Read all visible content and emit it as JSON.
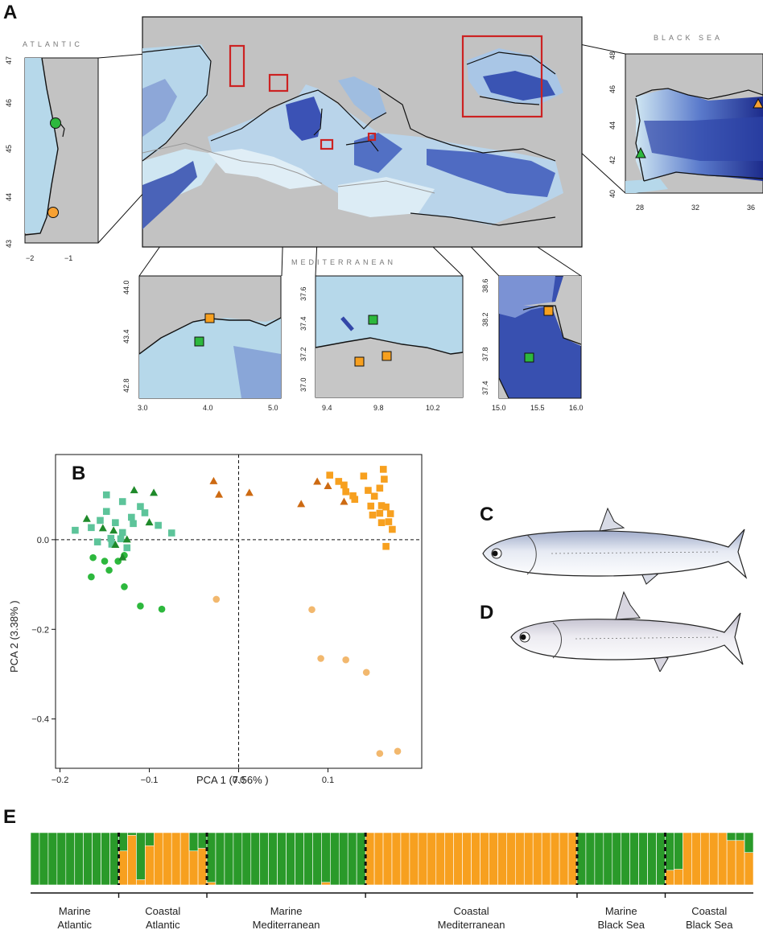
{
  "panels": {
    "a": "A",
    "b": "B",
    "c": "C",
    "d": "D",
    "e": "E"
  },
  "regions": {
    "atlantic": "ATLANTIC",
    "mediterranean": "MEDITERRANEAN",
    "black_sea": "BLACK SEA"
  },
  "colors": {
    "marine_atlantic": "#2db83d",
    "marine_med": "#5dc49a",
    "marine_black_sea": "#1f8a2a",
    "coastal_atlantic": "#f7a133",
    "coastal_med": "#f7a01f",
    "coastal_black_sea": "#cd6a12",
    "coastal_atlantic_light": "#f2b86e",
    "structure_green": "#2a9a2a",
    "structure_orange": "#f7a01f",
    "map_frame": "#cc2222"
  },
  "insets": {
    "atlantic": {
      "yticks": [
        "47",
        "46",
        "45",
        "44",
        "43"
      ],
      "xticks": [
        "−2",
        "−1"
      ]
    },
    "black_sea": {
      "yticks": [
        "48",
        "46",
        "44",
        "42",
        "40"
      ],
      "xticks": [
        "28",
        "32",
        "36"
      ]
    },
    "med1": {
      "yticks": [
        "44.0",
        "43.4",
        "42.8"
      ],
      "xticks": [
        "3.0",
        "4.0",
        "5.0"
      ]
    },
    "med2": {
      "yticks": [
        "37.6",
        "37.4",
        "37.2",
        "37.0"
      ],
      "xticks": [
        "9.4",
        "9.8",
        "10.2"
      ]
    },
    "med3": {
      "yticks": [
        "38.6",
        "38.2",
        "37.8",
        "37.4"
      ],
      "xticks": [
        "15.0",
        "15.5",
        "16.0"
      ]
    }
  },
  "chart_data": {
    "type": "scatter",
    "xlabel": "PCA 1 (7.56% )",
    "ylabel": "PCA 2 (3.38% )",
    "xlim": [
      -0.205,
      0.205
    ],
    "ylim": [
      -0.51,
      0.19
    ],
    "xticks": [
      -0.2,
      -0.1,
      0.0,
      0.1
    ],
    "yticks": [
      0.0,
      -0.2,
      -0.4
    ],
    "xtick_labels": [
      "−0.2",
      "−0.1",
      "0.0",
      "0.1"
    ],
    "ytick_labels": [
      "0.0",
      "−0.2",
      "−0.4"
    ],
    "reference_lines": {
      "x": 0.0,
      "y": 0.0
    },
    "grid": false,
    "series": [
      {
        "shape": "circle",
        "color": "#2db83d",
        "points": [
          [
            -0.163,
            -0.04
          ],
          [
            -0.15,
            -0.048
          ],
          [
            -0.165,
            -0.083
          ],
          [
            -0.145,
            -0.068
          ],
          [
            -0.135,
            -0.048
          ],
          [
            -0.128,
            -0.035
          ],
          [
            -0.128,
            -0.105
          ],
          [
            -0.11,
            -0.148
          ],
          [
            -0.086,
            -0.155
          ]
        ]
      },
      {
        "shape": "square",
        "color": "#5dc49a",
        "points": [
          [
            -0.183,
            0.021
          ],
          [
            -0.165,
            0.027
          ],
          [
            -0.158,
            -0.005
          ],
          [
            -0.148,
            0.063
          ],
          [
            -0.155,
            0.043
          ],
          [
            -0.143,
            0.003
          ],
          [
            -0.142,
            -0.01
          ],
          [
            -0.138,
            0.038
          ],
          [
            -0.13,
            0.085
          ],
          [
            -0.13,
            0.016
          ],
          [
            -0.125,
            -0.018
          ],
          [
            -0.118,
            0.036
          ],
          [
            -0.11,
            0.074
          ],
          [
            -0.105,
            0.06
          ],
          [
            -0.09,
            0.032
          ],
          [
            -0.075,
            0.015
          ],
          [
            -0.148,
            0.1
          ],
          [
            -0.12,
            0.05
          ],
          [
            -0.132,
            0.002
          ]
        ]
      },
      {
        "shape": "triangle",
        "color": "#1f8a2a",
        "points": [
          [
            -0.17,
            0.046
          ],
          [
            -0.152,
            0.025
          ],
          [
            -0.14,
            0.02
          ],
          [
            -0.138,
            -0.012
          ],
          [
            -0.125,
            0.0
          ],
          [
            -0.117,
            0.11
          ],
          [
            -0.1,
            0.038
          ],
          [
            -0.095,
            0.104
          ],
          [
            -0.13,
            -0.04
          ]
        ]
      },
      {
        "shape": "circle",
        "color": "#f2b86e",
        "points": [
          [
            -0.025,
            -0.133
          ],
          [
            0.082,
            -0.156
          ],
          [
            0.092,
            -0.265
          ],
          [
            0.12,
            -0.268
          ],
          [
            0.143,
            -0.296
          ],
          [
            0.158,
            -0.477
          ],
          [
            0.178,
            -0.472
          ]
        ]
      },
      {
        "shape": "square",
        "color": "#f7a01f",
        "points": [
          [
            0.102,
            0.144
          ],
          [
            0.112,
            0.13
          ],
          [
            0.118,
            0.122
          ],
          [
            0.12,
            0.107
          ],
          [
            0.128,
            0.098
          ],
          [
            0.13,
            0.09
          ],
          [
            0.14,
            0.142
          ],
          [
            0.145,
            0.11
          ],
          [
            0.148,
            0.075
          ],
          [
            0.152,
            0.097
          ],
          [
            0.158,
            0.059
          ],
          [
            0.16,
            0.076
          ],
          [
            0.162,
            0.157
          ],
          [
            0.163,
            0.135
          ],
          [
            0.165,
            0.073
          ],
          [
            0.168,
            0.04
          ],
          [
            0.172,
            0.023
          ],
          [
            0.158,
            0.115
          ],
          [
            0.15,
            0.055
          ],
          [
            0.17,
            0.058
          ],
          [
            0.16,
            0.038
          ],
          [
            0.165,
            -0.015
          ]
        ]
      },
      {
        "shape": "triangle",
        "color": "#cd6a12",
        "points": [
          [
            -0.028,
            0.13
          ],
          [
            -0.022,
            0.1
          ],
          [
            0.012,
            0.104
          ],
          [
            0.07,
            0.079
          ],
          [
            0.088,
            0.129
          ],
          [
            0.1,
            0.119
          ],
          [
            0.118,
            0.084
          ]
        ]
      }
    ]
  },
  "structure": {
    "groups": [
      {
        "label": "Marine\nAtlantic",
        "n": 10
      },
      {
        "label": "Coastal\nAtlantic",
        "n": 10
      },
      {
        "label": "Marine\nMediterranean",
        "n": 18
      },
      {
        "label": "Coastal\nMediterranean",
        "n": 24
      },
      {
        "label": "Marine\nBlack Sea",
        "n": 10
      },
      {
        "label": "Coastal\nBlack Sea",
        "n": 10
      }
    ],
    "green_fractions": [
      1,
      1,
      1,
      1,
      1,
      1,
      1,
      1,
      1,
      1,
      0.35,
      0.05,
      0.9,
      0.25,
      0,
      0,
      0,
      0,
      0.35,
      0.3,
      0.95,
      1,
      1,
      1,
      1,
      1,
      1,
      1,
      1,
      1,
      1,
      1,
      1,
      0.95,
      1,
      1,
      1,
      1,
      0,
      0,
      0,
      0,
      0,
      0,
      0,
      0,
      0,
      0,
      0,
      0,
      0,
      0,
      0,
      0,
      0,
      0,
      0,
      0,
      0,
      0,
      0,
      0,
      1,
      1,
      1,
      1,
      1,
      1,
      1,
      1,
      1,
      1,
      0.72,
      0.7,
      0,
      0,
      0,
      0,
      0,
      0.15,
      0.15,
      0.38
    ]
  }
}
